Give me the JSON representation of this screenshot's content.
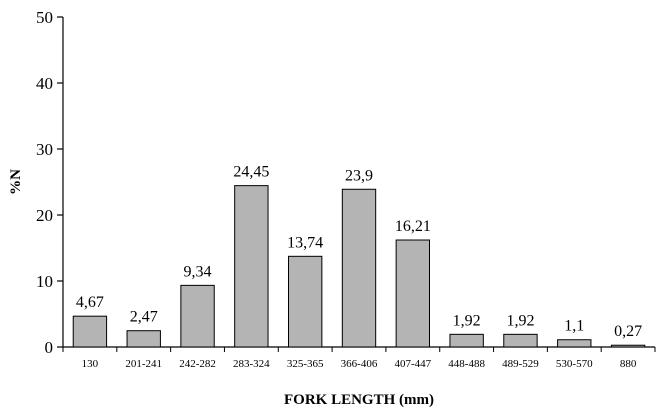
{
  "chart_data": {
    "type": "bar",
    "categories": [
      "130",
      "201-241",
      "242-282",
      "283-324",
      "325-365",
      "366-406",
      "407-447",
      "448-488",
      "489-529",
      "530-570",
      "880"
    ],
    "values": [
      4.67,
      2.47,
      9.34,
      24.45,
      13.74,
      23.9,
      16.21,
      1.92,
      1.92,
      1.1,
      0.27
    ],
    "data_labels": [
      "4,67",
      "2,47",
      "9,34",
      "24,45",
      "13,74",
      "23,9",
      "16,21",
      "1,92",
      "1,92",
      "1,1",
      "0,27"
    ],
    "xlabel": "FORK LENGTH (mm)",
    "ylabel": "%N",
    "ylim": [
      0,
      50
    ],
    "yticks": [
      "0",
      "10",
      "20",
      "30",
      "40",
      "50"
    ],
    "grid": false,
    "bar_color": "#b4b4b4",
    "bar_edge_color": "#000000"
  }
}
